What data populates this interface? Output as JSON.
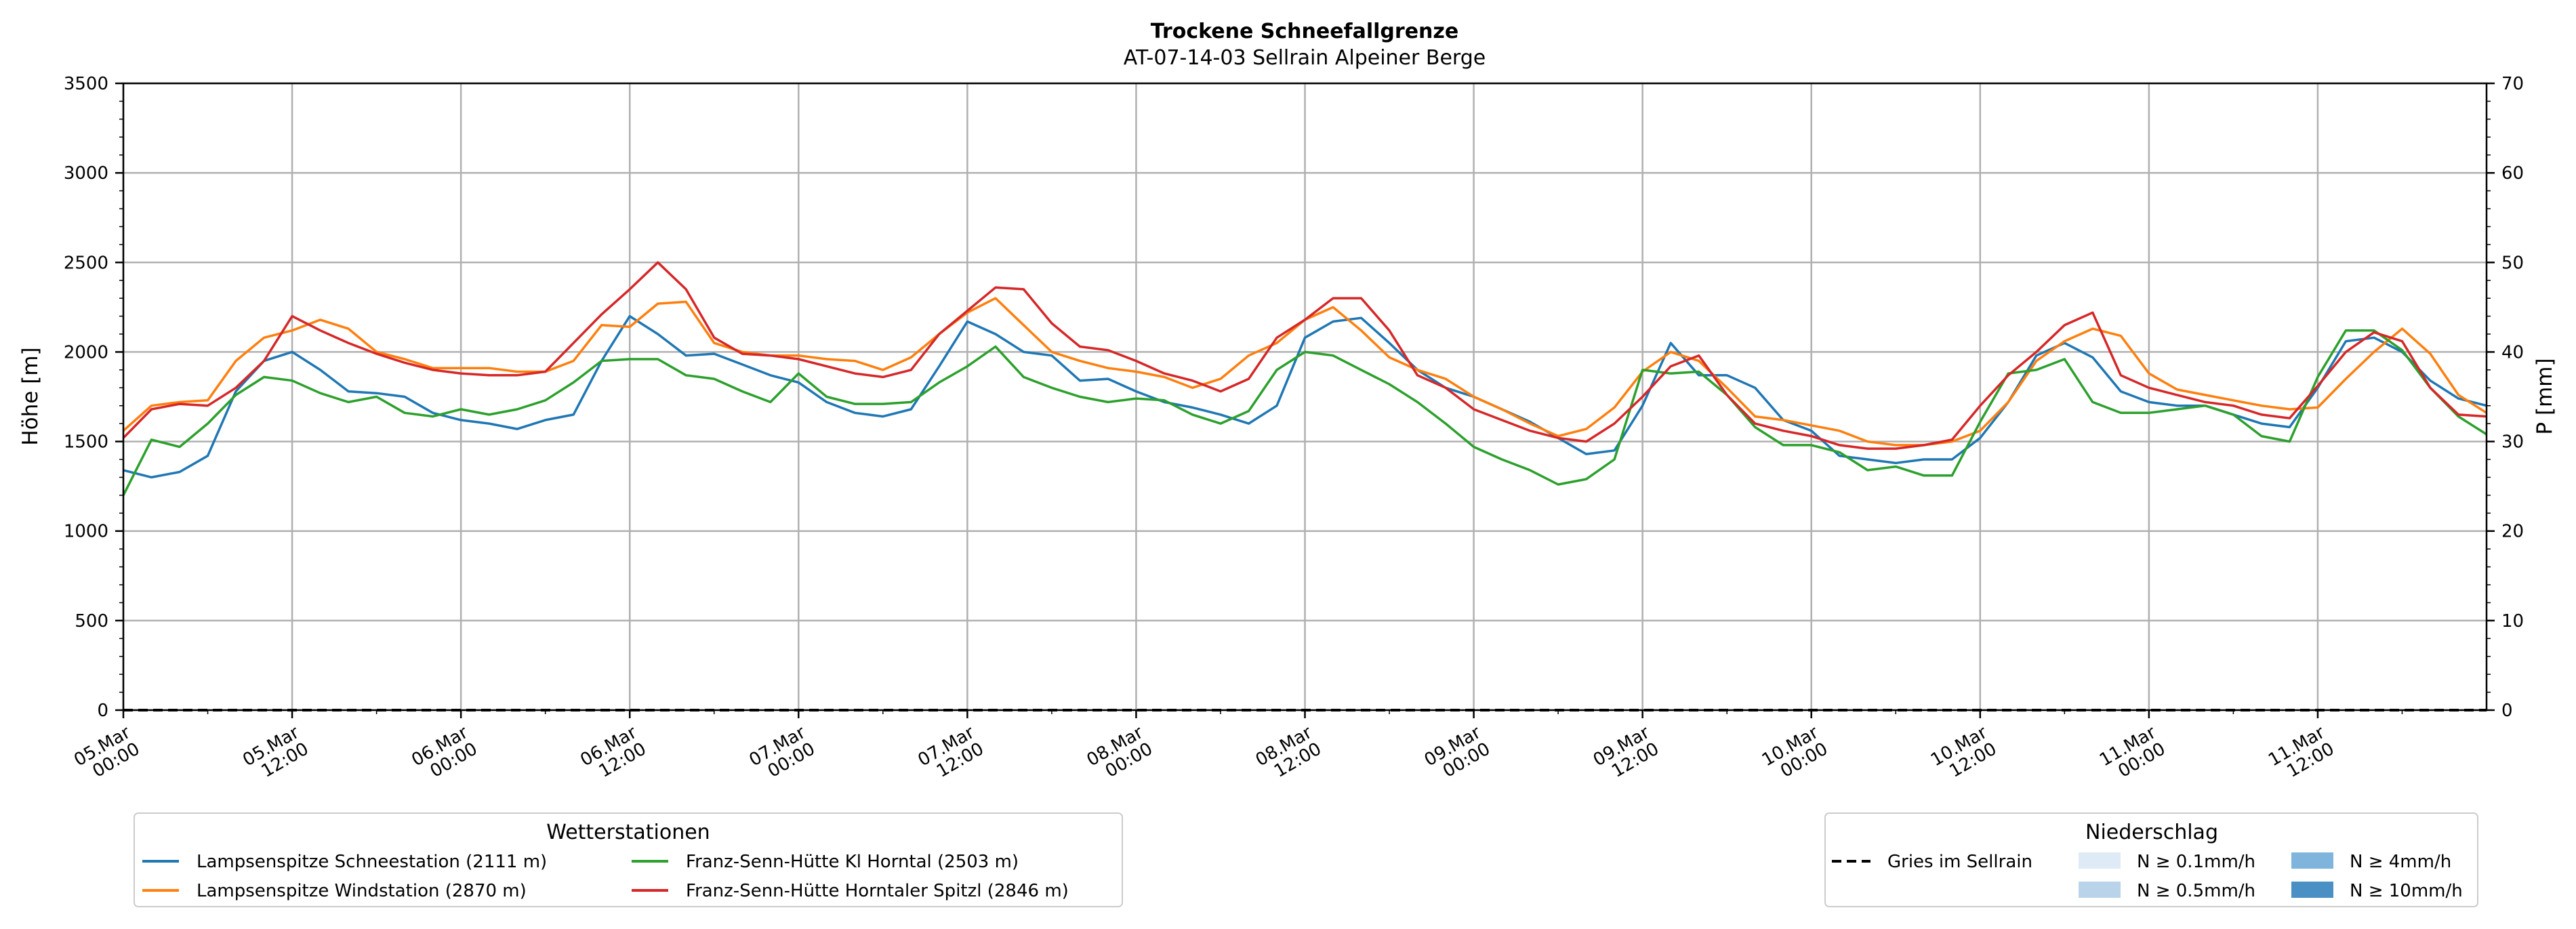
{
  "chart_data": {
    "type": "line",
    "title": "Trockene Schneefallgrenze",
    "subtitle": "AT-07-14-03 Sellrain Alpeiner Berge",
    "ylabel": "Höhe [m]",
    "ylabel_right": "P [mm]",
    "ylim": [
      0,
      3500
    ],
    "ylim_right": [
      0,
      70
    ],
    "yticks": [
      0,
      500,
      1000,
      1500,
      2000,
      2500,
      3000,
      3500
    ],
    "yticks_right": [
      0,
      10,
      20,
      30,
      40,
      50,
      60,
      70
    ],
    "x_range_hours": [
      0,
      168
    ],
    "xticks": [
      {
        "h": 0,
        "l1": "05.Mar",
        "l2": "00:00"
      },
      {
        "h": 12,
        "l1": "05.Mar",
        "l2": "12:00"
      },
      {
        "h": 24,
        "l1": "06.Mar",
        "l2": "00:00"
      },
      {
        "h": 36,
        "l1": "06.Mar",
        "l2": "12:00"
      },
      {
        "h": 48,
        "l1": "07.Mar",
        "l2": "00:00"
      },
      {
        "h": 60,
        "l1": "07.Mar",
        "l2": "12:00"
      },
      {
        "h": 72,
        "l1": "08.Mar",
        "l2": "00:00"
      },
      {
        "h": 84,
        "l1": "08.Mar",
        "l2": "12:00"
      },
      {
        "h": 96,
        "l1": "09.Mar",
        "l2": "00:00"
      },
      {
        "h": 108,
        "l1": "09.Mar",
        "l2": "12:00"
      },
      {
        "h": 120,
        "l1": "10.Mar",
        "l2": "00:00"
      },
      {
        "h": 132,
        "l1": "10.Mar",
        "l2": "12:00"
      },
      {
        "h": 144,
        "l1": "11.Mar",
        "l2": "00:00"
      },
      {
        "h": 156,
        "l1": "11.Mar",
        "l2": "12:00"
      }
    ],
    "grid": true,
    "series": [
      {
        "name": "Lampsenspitze Schneestation (2111 m)",
        "color": "#1f77b4",
        "x": [
          0,
          2,
          4,
          6,
          8,
          10,
          12,
          14,
          16,
          18,
          20,
          22,
          24,
          26,
          28,
          30,
          32,
          34,
          36,
          38,
          40,
          42,
          44,
          46,
          48,
          50,
          52,
          54,
          56,
          58,
          60,
          62,
          64,
          66,
          68,
          70,
          72,
          74,
          76,
          78,
          80,
          82,
          84,
          86,
          88,
          90,
          92,
          94,
          96,
          98,
          100,
          102,
          104,
          106,
          108,
          110,
          112,
          114,
          116,
          118,
          120,
          122,
          124,
          126,
          128,
          130,
          132,
          134,
          136,
          138,
          140,
          142,
          144,
          146,
          148,
          150,
          152,
          154,
          156,
          158,
          160,
          162,
          164,
          166,
          168
        ],
        "values": [
          1340,
          1300,
          1330,
          1420,
          1780,
          1950,
          2000,
          1900,
          1780,
          1770,
          1750,
          1660,
          1620,
          1600,
          1570,
          1620,
          1650,
          1950,
          2200,
          2100,
          1980,
          1990,
          1930,
          1870,
          1830,
          1720,
          1660,
          1640,
          1680,
          1920,
          2170,
          2100,
          2000,
          1980,
          1840,
          1850,
          1780,
          1720,
          1690,
          1650,
          1600,
          1700,
          2080,
          2170,
          2190,
          2050,
          1900,
          1800,
          1750,
          1680,
          1610,
          1520,
          1430,
          1450,
          1700,
          2050,
          1870,
          1870,
          1800,
          1620,
          1560,
          1420,
          1400,
          1380,
          1400,
          1400,
          1520,
          1720,
          1980,
          2050,
          1970,
          1780,
          1720,
          1700,
          1700,
          1650,
          1600,
          1580,
          1800,
          2060,
          2080,
          2000,
          1840,
          1740,
          1700
        ]
      },
      {
        "name": "Lampsenspitze Windstation (2870 m)",
        "color": "#ff7f0e",
        "x": [
          0,
          2,
          4,
          6,
          8,
          10,
          12,
          14,
          16,
          18,
          20,
          22,
          24,
          26,
          28,
          30,
          32,
          34,
          36,
          38,
          40,
          42,
          44,
          46,
          48,
          50,
          52,
          54,
          56,
          58,
          60,
          62,
          64,
          66,
          68,
          70,
          72,
          74,
          76,
          78,
          80,
          82,
          84,
          86,
          88,
          90,
          92,
          94,
          96,
          98,
          100,
          102,
          104,
          106,
          108,
          110,
          112,
          114,
          116,
          118,
          120,
          122,
          124,
          126,
          128,
          130,
          132,
          134,
          136,
          138,
          140,
          142,
          144,
          146,
          148,
          150,
          152,
          154,
          156,
          158,
          160,
          162,
          164,
          166,
          168
        ],
        "values": [
          1560,
          1700,
          1720,
          1730,
          1950,
          2080,
          2120,
          2180,
          2130,
          2000,
          1960,
          1910,
          1910,
          1910,
          1890,
          1890,
          1950,
          2150,
          2140,
          2270,
          2280,
          2050,
          2000,
          1980,
          1980,
          1960,
          1950,
          1900,
          1970,
          2100,
          2220,
          2300,
          2150,
          2000,
          1950,
          1910,
          1890,
          1860,
          1800,
          1850,
          1980,
          2050,
          2180,
          2250,
          2120,
          1970,
          1900,
          1850,
          1750,
          1680,
          1600,
          1530,
          1570,
          1690,
          1890,
          2000,
          1950,
          1800,
          1640,
          1620,
          1590,
          1560,
          1500,
          1480,
          1480,
          1500,
          1560,
          1720,
          1950,
          2060,
          2130,
          2090,
          1880,
          1790,
          1760,
          1730,
          1700,
          1680,
          1690,
          1850,
          2000,
          2130,
          1990,
          1760,
          1660
        ]
      },
      {
        "name": "Franz-Senn-Hütte Kl Horntal (2503 m)",
        "color": "#2ca02c",
        "x": [
          0,
          2,
          4,
          6,
          8,
          10,
          12,
          14,
          16,
          18,
          20,
          22,
          24,
          26,
          28,
          30,
          32,
          34,
          36,
          38,
          40,
          42,
          44,
          46,
          48,
          50,
          52,
          54,
          56,
          58,
          60,
          62,
          64,
          66,
          68,
          70,
          72,
          74,
          76,
          78,
          80,
          82,
          84,
          86,
          88,
          90,
          92,
          94,
          96,
          98,
          100,
          102,
          104,
          106,
          108,
          110,
          112,
          114,
          116,
          118,
          120,
          122,
          124,
          126,
          128,
          130,
          132,
          134,
          136,
          138,
          140,
          142,
          144,
          146,
          148,
          150,
          152,
          154,
          156,
          158,
          160,
          162,
          164,
          166,
          168
        ],
        "values": [
          1200,
          1510,
          1470,
          1600,
          1760,
          1860,
          1840,
          1770,
          1720,
          1750,
          1660,
          1640,
          1680,
          1650,
          1680,
          1730,
          1830,
          1950,
          1960,
          1960,
          1870,
          1850,
          1780,
          1720,
          1880,
          1750,
          1710,
          1710,
          1720,
          1830,
          1920,
          2030,
          1860,
          1800,
          1750,
          1720,
          1740,
          1730,
          1650,
          1600,
          1670,
          1900,
          2000,
          1980,
          1900,
          1820,
          1720,
          1600,
          1470,
          1400,
          1340,
          1260,
          1290,
          1400,
          1900,
          1880,
          1890,
          1760,
          1580,
          1480,
          1480,
          1440,
          1340,
          1360,
          1310,
          1310,
          1610,
          1880,
          1900,
          1960,
          1720,
          1660,
          1660,
          1680,
          1700,
          1650,
          1530,
          1500,
          1860,
          2120,
          2120,
          2010,
          1800,
          1640,
          1540
        ]
      },
      {
        "name": "Franz-Senn-Hütte Horntaler Spitzl (2846 m)",
        "color": "#d62728",
        "x": [
          0,
          2,
          4,
          6,
          8,
          10,
          12,
          14,
          16,
          18,
          20,
          22,
          24,
          26,
          28,
          30,
          32,
          34,
          36,
          38,
          40,
          42,
          44,
          46,
          48,
          50,
          52,
          54,
          56,
          58,
          60,
          62,
          64,
          66,
          68,
          70,
          72,
          74,
          76,
          78,
          80,
          82,
          84,
          86,
          88,
          90,
          92,
          94,
          96,
          98,
          100,
          102,
          104,
          106,
          108,
          110,
          112,
          114,
          116,
          118,
          120,
          122,
          124,
          126,
          128,
          130,
          132,
          134,
          136,
          138,
          140,
          142,
          144,
          146,
          148,
          150,
          152,
          154,
          156,
          158,
          160,
          162,
          164,
          166,
          168
        ],
        "values": [
          1520,
          1680,
          1710,
          1700,
          1800,
          1950,
          2200,
          2120,
          2050,
          1990,
          1940,
          1900,
          1880,
          1870,
          1870,
          1890,
          2050,
          2210,
          2350,
          2500,
          2350,
          2080,
          1990,
          1980,
          1960,
          1920,
          1880,
          1860,
          1900,
          2100,
          2230,
          2360,
          2350,
          2160,
          2030,
          2010,
          1950,
          1880,
          1840,
          1780,
          1850,
          2080,
          2180,
          2300,
          2300,
          2120,
          1870,
          1800,
          1680,
          1620,
          1560,
          1520,
          1500,
          1600,
          1750,
          1920,
          1980,
          1760,
          1600,
          1560,
          1530,
          1480,
          1460,
          1460,
          1480,
          1510,
          1700,
          1870,
          2000,
          2150,
          2220,
          1870,
          1800,
          1760,
          1720,
          1700,
          1650,
          1630,
          1810,
          2000,
          2110,
          2060,
          1800,
          1650,
          1640
        ]
      },
      {
        "name": "Gries im Sellrain",
        "color": "#000000",
        "dashed": true,
        "x": [
          0,
          168
        ],
        "values": [
          0,
          0
        ]
      }
    ],
    "legend_stations": {
      "title": "Wetterstationen",
      "entries": [
        "Lampsenspitze Schneestation (2111 m)",
        "Franz-Senn-Hütte Kl Horntal (2503 m)",
        "Lampsenspitze Windstation (2870 m)",
        "Franz-Senn-Hütte Horntaler Spitzl (2846 m)"
      ],
      "placement": "bottom-left"
    },
    "legend_precip": {
      "title": "Niederschlag",
      "placement": "bottom-right",
      "line_label": "Gries im Sellrain",
      "patches": [
        {
          "label": "N ≥ 0.1mm/h",
          "color": "#deebf7"
        },
        {
          "label": "N ≥ 4mm/h",
          "color": "#7fb5dc"
        },
        {
          "label": "N ≥ 0.5mm/h",
          "color": "#b9d4ea"
        },
        {
          "label": "N ≥ 10mm/h",
          "color": "#4a90c4"
        }
      ]
    }
  }
}
